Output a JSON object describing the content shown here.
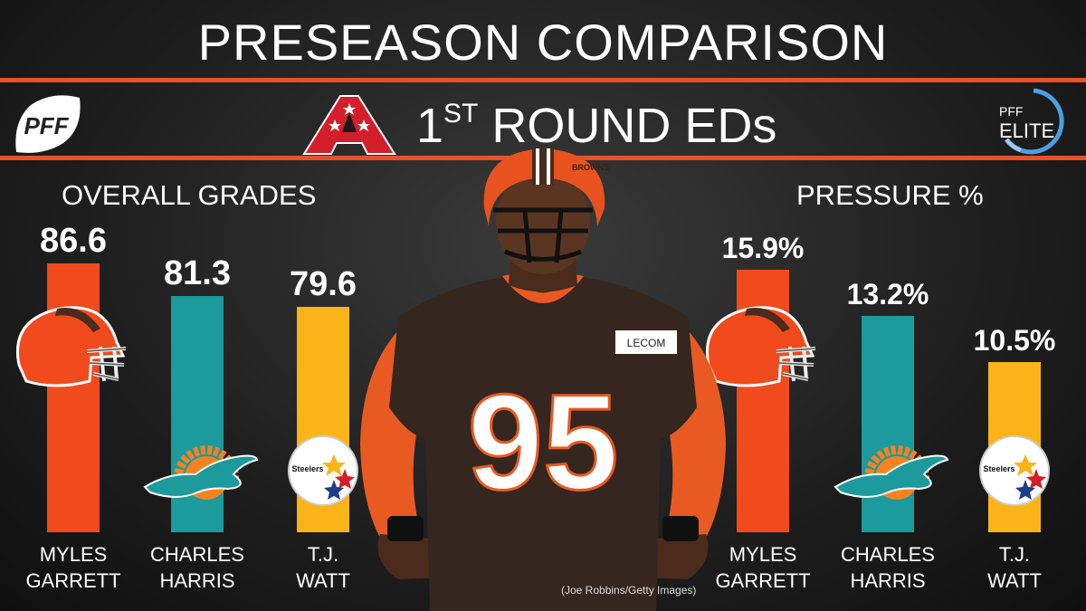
{
  "header": {
    "title": "PRESEASON COMPARISON",
    "subtitle_main": "1",
    "subtitle_sup": "ST",
    "subtitle_rest": " ROUND EDs",
    "pff_logo_text": "PFF",
    "elite_logo_line1": "PFF",
    "elite_logo_line2": "ELITE"
  },
  "colors": {
    "accent": "#e8502a",
    "browns": "#f04a1d",
    "dolphins": "#1d9a9b",
    "steelers": "#fbb417"
  },
  "players": [
    {
      "first": "MYLES",
      "last": "GARRETT",
      "team_icon": "browns-helmet-icon"
    },
    {
      "first": "CHARLES",
      "last": "HARRIS",
      "team_icon": "dolphins-logo-icon"
    },
    {
      "first": "T.J.",
      "last": "WATT",
      "team_icon": "steelers-logo-icon"
    }
  ],
  "chart_data": [
    {
      "type": "bar",
      "title": "OVERALL GRADES",
      "categories": [
        "MYLES GARRETT",
        "CHARLES HARRIS",
        "T.J. WATT"
      ],
      "values": [
        86.6,
        81.3,
        79.6
      ],
      "labels": [
        "86.6",
        "81.3",
        "79.6"
      ],
      "colors": [
        "#f04a1d",
        "#1d9a9b",
        "#fbb417"
      ]
    },
    {
      "type": "bar",
      "title": "PRESSURE %",
      "categories": [
        "MYLES GARRETT",
        "CHARLES HARRIS",
        "T.J. WATT"
      ],
      "values": [
        15.9,
        13.2,
        10.5
      ],
      "labels": [
        "15.9%",
        "13.2%",
        "10.5%"
      ],
      "colors": [
        "#f04a1d",
        "#1d9a9b",
        "#fbb417"
      ]
    }
  ],
  "photo": {
    "jersey_number": "95",
    "patch_text": "LECOM",
    "helmet_text": "BROWNS",
    "credit": "(Joe Robbins/Getty Images)"
  }
}
